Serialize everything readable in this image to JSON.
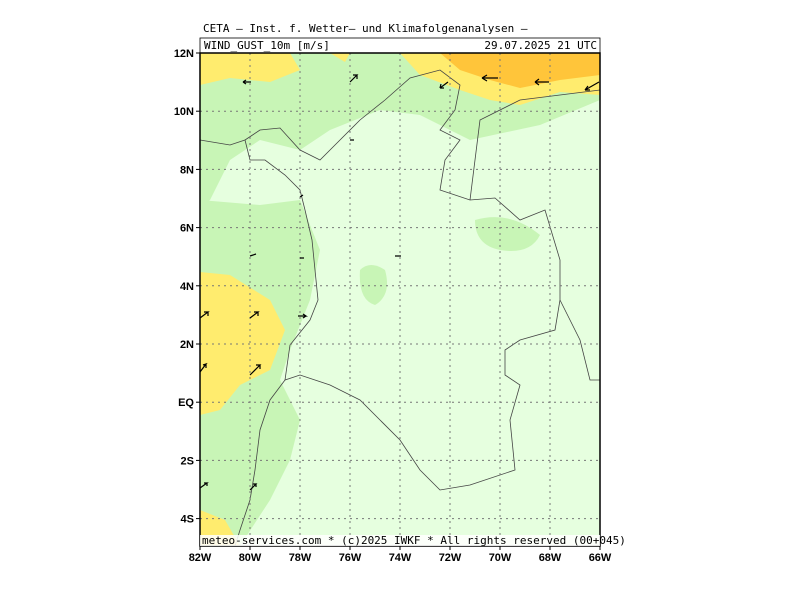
{
  "header": {
    "title": "CETA — Inst. f. Wetter— und Klimafolgenanalysen —",
    "field": "WIND_GUST_10m [m/s]",
    "valid": "29.07.2025 21 UTC"
  },
  "footer": "meteo-services.com * (c)2025 IWKF * All rights reserved (00+045)",
  "lat_labels": [
    "12N",
    "10N",
    "8N",
    "6N",
    "4N",
    "2N",
    "EQ",
    "2S",
    "4S"
  ],
  "lon_labels": [
    "82W",
    "80W",
    "78W",
    "76W",
    "74W",
    "72W",
    "70W",
    "68W",
    "66W"
  ]
}
